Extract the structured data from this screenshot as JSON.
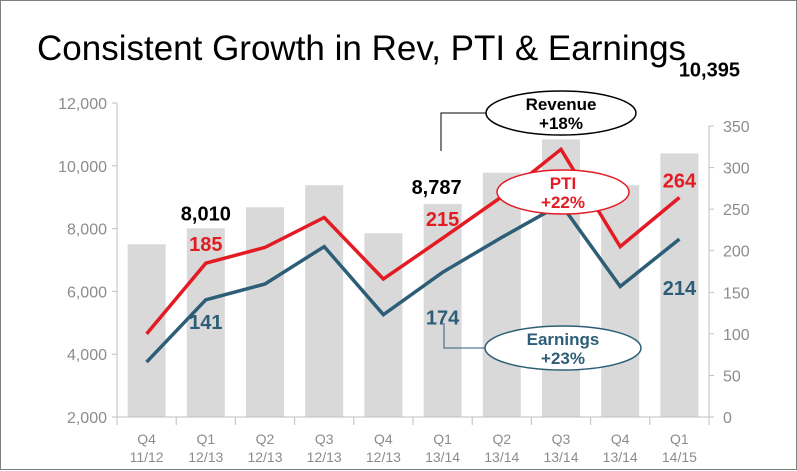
{
  "title": "Consistent Growth in Rev, PTI & Earnings",
  "chart_data": {
    "type": "bar",
    "categories": [
      "Q4\n11/12",
      "Q1\n12/13",
      "Q2\n12/13",
      "Q3\n12/13",
      "Q4\n12/13",
      "Q1\n13/14",
      "Q2\n13/14",
      "Q3\n13/14",
      "Q4\n13/14",
      "Q1\n14/15"
    ],
    "left_axis": {
      "ylim": [
        2000,
        12000
      ],
      "ticks": [
        "2,000",
        "4,000",
        "6,000",
        "8,000",
        "10,000",
        "12,000"
      ]
    },
    "right_axis": {
      "ylim": [
        0,
        350
      ],
      "ticks": [
        "0",
        "50",
        "100",
        "150",
        "200",
        "250",
        "300",
        "350"
      ]
    },
    "series": [
      {
        "name": "Revenue",
        "axis": "left",
        "type": "bar",
        "color": "#d9d9d9",
        "values": [
          7500,
          8010,
          8680,
          9380,
          7850,
          8787,
          9780,
          10840,
          9380,
          10395
        ]
      },
      {
        "name": "PTI",
        "axis": "right",
        "type": "line",
        "color": "#e31b23",
        "values": [
          100,
          185,
          204,
          240,
          166,
          215,
          265,
          322,
          205,
          264
        ]
      },
      {
        "name": "Earnings",
        "axis": "right",
        "type": "line",
        "color": "#2e5e77",
        "values": [
          66,
          141,
          160,
          205,
          123,
          174,
          216,
          256,
          157,
          214
        ]
      }
    ],
    "data_labels": [
      {
        "series": "Revenue",
        "index": 1,
        "text": "8,010",
        "color": "#000000"
      },
      {
        "series": "Revenue",
        "index": 5,
        "text": "8,787",
        "color": "#000000"
      },
      {
        "series": "Revenue",
        "index": 9,
        "text": "10,395",
        "color": "#000000"
      },
      {
        "series": "PTI",
        "index": 1,
        "text": "185",
        "color": "#e31b23"
      },
      {
        "series": "PTI",
        "index": 5,
        "text": "215",
        "color": "#e31b23"
      },
      {
        "series": "PTI",
        "index": 9,
        "text": "264",
        "color": "#e31b23"
      },
      {
        "series": "Earnings",
        "index": 1,
        "text": "141",
        "color": "#2e5e77"
      },
      {
        "series": "Earnings",
        "index": 5,
        "text": "174",
        "color": "#2e5e77"
      },
      {
        "series": "Earnings",
        "index": 9,
        "text": "214",
        "color": "#2e5e77"
      }
    ],
    "callouts": [
      {
        "series": "Revenue",
        "line1": "Revenue",
        "line2": "+18%",
        "color": "#000000"
      },
      {
        "series": "PTI",
        "line1": "PTI",
        "line2": "+22%",
        "color": "#e31b23"
      },
      {
        "series": "Earnings",
        "line1": "Earnings",
        "line2": "+23%",
        "color": "#2e5e77"
      }
    ],
    "grid": false,
    "legend": "none"
  }
}
